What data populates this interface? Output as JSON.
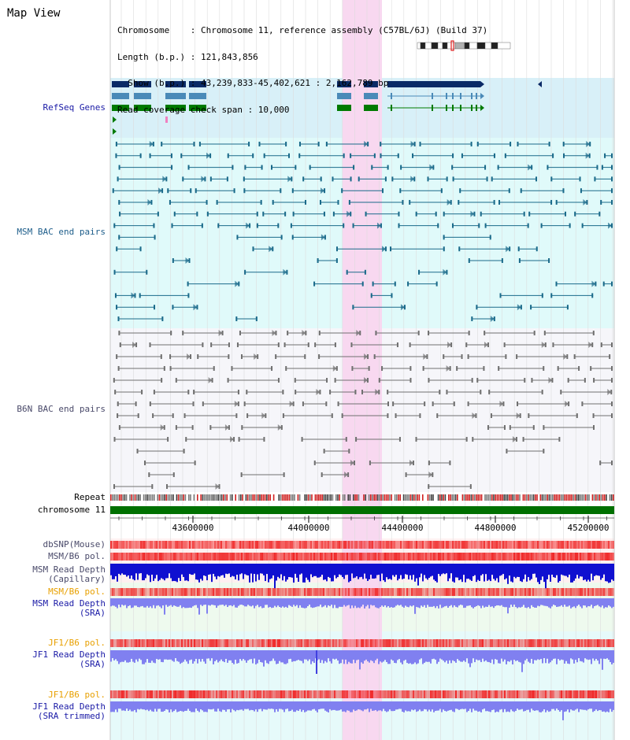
{
  "page": {
    "title": "Map View"
  },
  "info": {
    "chromosome": "Chromosome    : Chromosome 11, reference assembly (C57BL/6J) (Build 37)",
    "length": "Length (b.p.) : 121,843,856",
    "show": "  Show (b.p.) : 43,239,833-45,402,621 : 2,162,789 bp",
    "coverage": "Read coverage check span : 10,000"
  },
  "tracks": {
    "refseq": "RefSeq Genes",
    "msm_bac": "MSM BAC end pairs",
    "b6n_bac": "B6N BAC end pairs",
    "repeat": "Repeat",
    "chromosome": "chromosome 11",
    "dbsnp": "dbSNP(Mouse)",
    "msm_b6_pol": "MSM/B6 pol.",
    "msm_depth_cap_1": "MSM Read Depth",
    "msm_depth_cap_2": "(Capillary)",
    "msm_b6_pol_2": "MSM/B6 pol.",
    "msm_depth_sra_1": "MSM Read Depth",
    "msm_depth_sra_2": "(SRA)",
    "jf1_b6_pol": "JF1/B6 pol.",
    "jf1_depth_1": "JF1 Read Depth",
    "jf1_depth_2": "(SRA)",
    "jf1_b6_pol_2": "JF1/B6 pol.",
    "jf1_trim_1": "JF1 Read Depth",
    "jf1_trim_2": "(SRA trimmed)"
  },
  "axis": {
    "ticks": [
      "43600000",
      "44000000",
      "44400000",
      "44800000",
      "45200000"
    ]
  },
  "colors": {
    "highlight": "#f8d8f0",
    "refseq_bg": "#d8f0f8",
    "msm_bg": "#e0fafa",
    "b6n_bg": "#f6f6fa",
    "gene_navy": "#0a2a66",
    "gene_blue": "#4a8ab8",
    "gene_green": "#007a00",
    "msm_line": "#1a6a8a",
    "b6n_line": "#707070",
    "chrom_bar": "#007000",
    "snp_red": "#f04040",
    "depth_blue": "#1010d0",
    "depth_light": "#8080f0"
  }
}
